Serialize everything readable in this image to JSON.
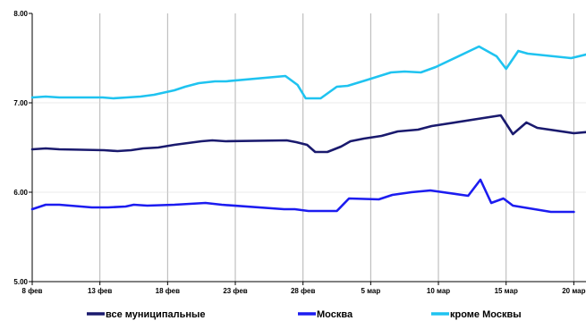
{
  "chart_data": {
    "type": "line",
    "title": "",
    "xlabel": "",
    "ylabel": "",
    "ylim": [
      5.0,
      8.0
    ],
    "y_ticks": [
      "5.00",
      "6.00",
      "7.00",
      "8.00"
    ],
    "x_range_days": [
      8,
      72
    ],
    "x_ticks": [
      {
        "label": "8 фев",
        "day": 8
      },
      {
        "label": "13 фев",
        "day": 13
      },
      {
        "label": "18 фев",
        "day": 18
      },
      {
        "label": "23 фев",
        "day": 23
      },
      {
        "label": "28 фев",
        "day": 28
      },
      {
        "label": "5 мар",
        "day": 33
      },
      {
        "label": "10 мар",
        "day": 38
      },
      {
        "label": "15 мар",
        "day": 43
      },
      {
        "label": "20 мар",
        "day": 48
      }
    ],
    "grid": "vertical",
    "legend_position": "bottom",
    "series": [
      {
        "name": "все муниципальные",
        "color": "#1a1a6e",
        "points": [
          [
            8.0,
            6.48
          ],
          [
            9.0,
            6.49
          ],
          [
            10.0,
            6.48
          ],
          [
            13.3,
            6.47
          ],
          [
            14.3,
            6.46
          ],
          [
            15.3,
            6.47
          ],
          [
            16.2,
            6.49
          ],
          [
            17.3,
            6.5
          ],
          [
            18.5,
            6.53
          ],
          [
            20.5,
            6.57
          ],
          [
            21.3,
            6.58
          ],
          [
            22.3,
            6.57
          ],
          [
            26.8,
            6.58
          ],
          [
            27.5,
            6.56
          ],
          [
            28.3,
            6.53
          ],
          [
            28.9,
            6.45
          ],
          [
            29.8,
            6.45
          ],
          [
            30.8,
            6.51
          ],
          [
            31.5,
            6.57
          ],
          [
            32.5,
            6.6
          ],
          [
            33.8,
            6.63
          ],
          [
            35.0,
            6.68
          ],
          [
            36.5,
            6.7
          ],
          [
            37.5,
            6.74
          ],
          [
            42.6,
            6.86
          ],
          [
            43.5,
            6.65
          ],
          [
            44.5,
            6.78
          ],
          [
            45.3,
            6.72
          ],
          [
            48.0,
            6.66
          ],
          [
            49.5,
            6.68
          ]
        ]
      },
      {
        "name": "Москва",
        "color": "#1c1cf0",
        "points": [
          [
            8.0,
            5.81
          ],
          [
            9.0,
            5.86
          ],
          [
            10.0,
            5.86
          ],
          [
            12.4,
            5.83
          ],
          [
            13.6,
            5.83
          ],
          [
            14.9,
            5.84
          ],
          [
            15.5,
            5.86
          ],
          [
            16.5,
            5.85
          ],
          [
            18.5,
            5.86
          ],
          [
            20.8,
            5.88
          ],
          [
            22.0,
            5.86
          ],
          [
            26.6,
            5.81
          ],
          [
            27.4,
            5.81
          ],
          [
            28.4,
            5.79
          ],
          [
            29.5,
            5.79
          ],
          [
            30.5,
            5.79
          ],
          [
            31.4,
            5.93
          ],
          [
            33.6,
            5.92
          ],
          [
            34.6,
            5.97
          ],
          [
            36.0,
            6.0
          ],
          [
            37.4,
            6.02
          ],
          [
            40.2,
            5.96
          ],
          [
            41.1,
            6.14
          ],
          [
            41.9,
            5.88
          ],
          [
            42.8,
            5.93
          ],
          [
            43.5,
            5.85
          ],
          [
            46.3,
            5.78
          ],
          [
            48.0,
            5.78
          ]
        ]
      },
      {
        "name": "кроме Москвы",
        "color": "#1fc3f0",
        "points": [
          [
            8.0,
            7.06
          ],
          [
            9.0,
            7.07
          ],
          [
            10.0,
            7.06
          ],
          [
            13.2,
            7.06
          ],
          [
            14.0,
            7.05
          ],
          [
            15.0,
            7.06
          ],
          [
            16.0,
            7.07
          ],
          [
            17.0,
            7.09
          ],
          [
            18.5,
            7.14
          ],
          [
            19.3,
            7.18
          ],
          [
            20.3,
            7.22
          ],
          [
            21.5,
            7.24
          ],
          [
            22.3,
            7.24
          ],
          [
            26.7,
            7.3
          ],
          [
            27.6,
            7.2
          ],
          [
            28.2,
            7.05
          ],
          [
            29.3,
            7.05
          ],
          [
            30.5,
            7.18
          ],
          [
            31.3,
            7.19
          ],
          [
            32.6,
            7.25
          ],
          [
            34.5,
            7.34
          ],
          [
            35.5,
            7.35
          ],
          [
            36.7,
            7.34
          ],
          [
            37.8,
            7.4
          ],
          [
            41.0,
            7.63
          ],
          [
            42.3,
            7.52
          ],
          [
            43.0,
            7.38
          ],
          [
            43.9,
            7.58
          ],
          [
            44.6,
            7.55
          ],
          [
            47.8,
            7.5
          ],
          [
            48.9,
            7.54
          ]
        ]
      }
    ]
  }
}
